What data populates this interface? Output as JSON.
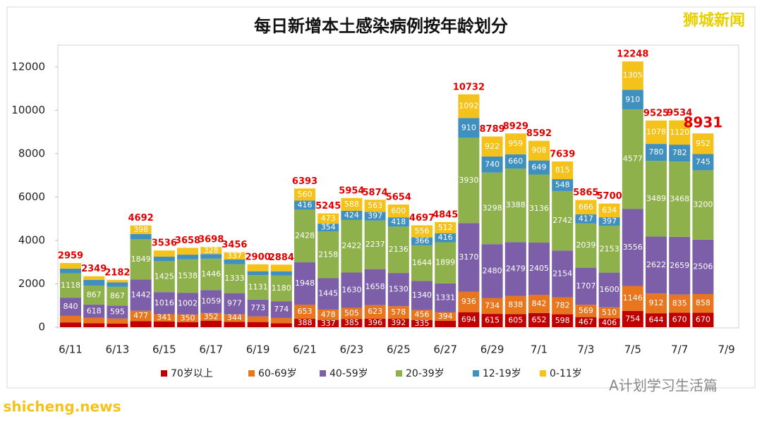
{
  "chart_data": {
    "type": "stacked_bar",
    "title": "每日新增本土感染病例按年龄划分",
    "categories": [
      "6/11",
      null,
      "6/13",
      null,
      "6/15",
      null,
      "6/17",
      null,
      "6/19",
      null,
      "6/21",
      null,
      "6/23",
      null,
      "6/25",
      null,
      "6/27",
      null,
      "6/29",
      null,
      "7/1",
      null,
      "7/3",
      null,
      "7/5",
      null,
      "7/7",
      null,
      "7/9"
    ],
    "series": [
      {
        "name": "70岁以上",
        "color": "#c00000",
        "values": [
          222,
          179,
          172,
          283,
          261,
          237,
          302,
          250,
          240,
          185,
          388,
          337,
          385,
          396,
          392,
          335,
          293,
          694,
          615,
          605,
          652,
          598,
          467,
          406,
          754,
          644,
          670,
          670,
          null
        ]
      },
      {
        "name": "60-69岁",
        "color": "#e8761e",
        "values": [
          300,
          250,
          230,
          477,
          341,
          350,
          352,
          344,
          258,
          240,
          653,
          478,
          505,
          623,
          578,
          456,
          394,
          936,
          734,
          838,
          842,
          782,
          569,
          510,
          1146,
          912,
          835,
          858,
          null
        ]
      },
      {
        "name": "40-59岁",
        "color": "#7c5fa8",
        "values": [
          840,
          618,
          595,
          1442,
          1016,
          1002,
          1059,
          977,
          773,
          774,
          1948,
          1445,
          1630,
          1658,
          1530,
          1340,
          1331,
          3170,
          2480,
          2479,
          2405,
          2154,
          1707,
          1600,
          3556,
          2622,
          2659,
          2506,
          null
        ]
      },
      {
        "name": "20-39岁",
        "color": "#8fb14c",
        "values": [
          1118,
          867,
          867,
          1849,
          1425,
          1538,
          1446,
          1333,
          1131,
          1180,
          2428,
          2158,
          2422,
          2237,
          2136,
          1644,
          1899,
          3930,
          3298,
          3388,
          3136,
          2742,
          2039,
          2153,
          4577,
          3489,
          3468,
          3200,
          null
        ]
      },
      {
        "name": "12-19岁",
        "color": "#3f8fbf",
        "values": [
          222,
          266,
          201,
          243,
          208,
          217,
          211,
          215,
          177,
          199,
          416,
          354,
          424,
          397,
          418,
          366,
          416,
          910,
          740,
          660,
          649,
          548,
          417,
          397,
          910,
          780,
          782,
          745,
          null
        ]
      },
      {
        "name": "0-11岁",
        "color": "#f4c21b",
        "values": [
          257,
          169,
          117,
          398,
          285,
          314,
          328,
          337,
          321,
          306,
          560,
          473,
          588,
          563,
          600,
          556,
          512,
          1092,
          922,
          959,
          908,
          815,
          666,
          634,
          1305,
          1078,
          1120,
          952,
          null
        ]
      }
    ],
    "totals": [
      2959,
      2349,
      2182,
      4692,
      3536,
      3658,
      3698,
      3456,
      2900,
      2884,
      6393,
      5245,
      5954,
      5874,
      5654,
      4697,
      4845,
      10732,
      8789,
      8929,
      8592,
      7639,
      5865,
      5700,
      12248,
      9525,
      9534,
      8931,
      null
    ],
    "ylim": [
      0,
      13000
    ],
    "yticks": [
      0,
      2000,
      4000,
      6000,
      8000,
      10000,
      12000
    ],
    "grid": false,
    "legend": "bottom"
  },
  "watermarks": {
    "top_right": "狮城新闻",
    "bottom_right": "A计划学习生活篇",
    "bottom_left": "shicheng.news"
  }
}
